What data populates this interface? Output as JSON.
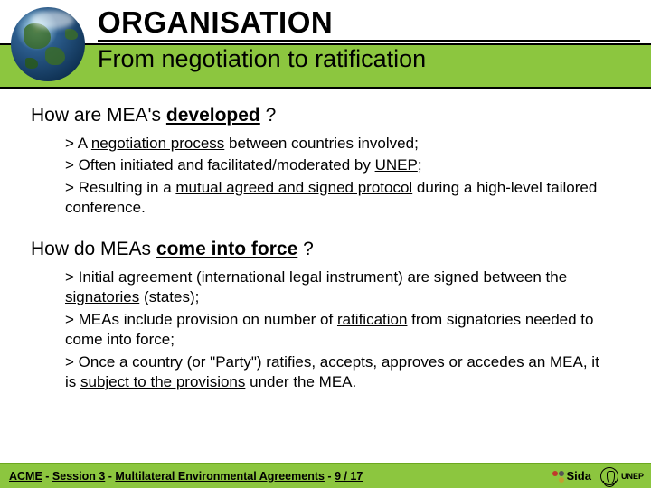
{
  "header": {
    "title": "ORGANISATION",
    "subtitle": "From negotiation to ratification",
    "bar_color": "#8cc63f"
  },
  "section1": {
    "question_pre": "How are MEA's ",
    "question_kw": "developed",
    "question_post": " ?",
    "bullets": [
      {
        "pre": "> A ",
        "ul": "negotiation process",
        "post": " between countries involved;"
      },
      {
        "pre": "> Often initiated and facilitated/moderated by ",
        "ul": "UNEP",
        "post": ";"
      },
      {
        "pre": "> Resulting in a ",
        "ul": "mutual agreed and signed protocol",
        "post": " during a high-level tailored conference."
      }
    ]
  },
  "section2": {
    "question_pre": "How do MEAs ",
    "question_kw": "come into force",
    "question_post": " ?",
    "bullets": [
      {
        "pre": "> Initial agreement (international legal instrument) are signed between the ",
        "ul": "signatories",
        "post": " (states);"
      },
      {
        "pre": "> MEAs include provision on number of ",
        "ul": "ratification",
        "post": " from signatories needed to come into force;"
      },
      {
        "pre": "> Once a country (or \"Party\") ratifies, accepts, approves or accedes an MEA, it is ",
        "ul": "subject to the provisions",
        "post": " under the MEA."
      }
    ]
  },
  "footer": {
    "segs": [
      "ACME",
      " - ",
      "Session 3",
      " - ",
      "Multilateral Environmental Agreements",
      " - ",
      "9 / 17"
    ],
    "sida_label": "Sida",
    "unep_label": "UNEP",
    "bar_color": "#8cc63f"
  }
}
